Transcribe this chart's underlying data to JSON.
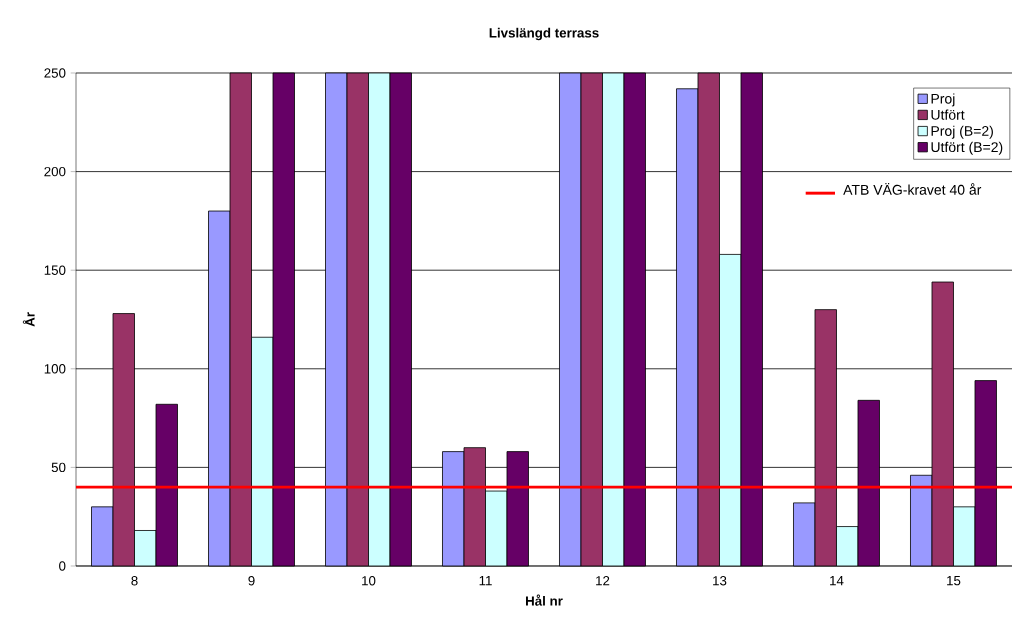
{
  "chart_data": {
    "type": "bar",
    "title": "Livslängd terrass",
    "xlabel": "Hål nr",
    "ylabel": "År",
    "categories": [
      "8",
      "9",
      "10",
      "11",
      "12",
      "13",
      "14",
      "15"
    ],
    "series": [
      {
        "name": "Proj",
        "color": "#9999ff",
        "values": [
          30,
          180,
          250,
          58,
          250,
          242,
          32,
          46
        ]
      },
      {
        "name": "Utfört",
        "color": "#993366",
        "values": [
          128,
          250,
          250,
          60,
          250,
          250,
          130,
          144
        ]
      },
      {
        "name": "Proj (B=2)",
        "color": "#ccffff",
        "values": [
          18,
          116,
          250,
          38,
          250,
          158,
          20,
          30
        ]
      },
      {
        "name": "Utfört (B=2)",
        "color": "#660066",
        "values": [
          82,
          250,
          250,
          58,
          250,
          250,
          84,
          94
        ]
      }
    ],
    "ylim": [
      0,
      250
    ],
    "yticks": [
      0,
      50,
      100,
      150,
      200,
      250
    ],
    "grid": "y",
    "legend": "top right",
    "ref_lines": [
      {
        "axis": "y",
        "value": 40,
        "label": "ATB VÄG-kravet 40 år",
        "color": "#ff0000"
      }
    ]
  }
}
